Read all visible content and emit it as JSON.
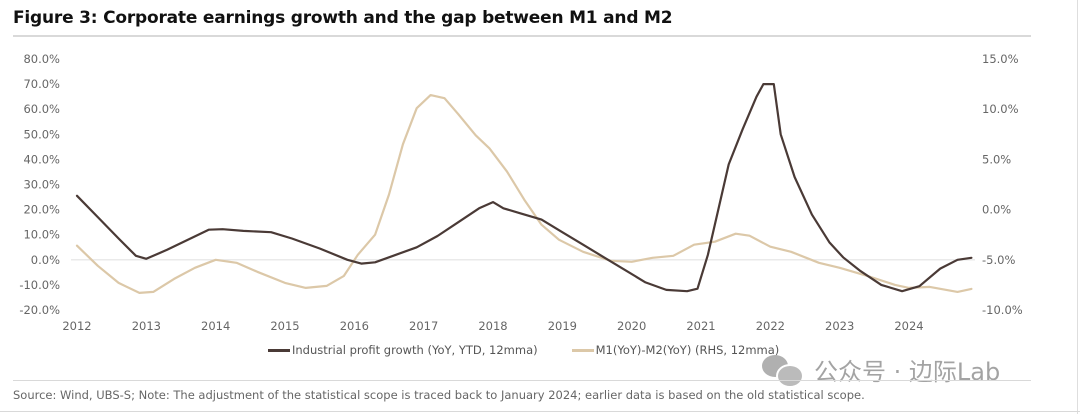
{
  "figure": {
    "title": "Figure 3: Corporate earnings growth and the gap between M1 and M2",
    "source": "Source: Wind, UBS-S; Note: The adjustment of the statistical scope is traced back to January 2024; earlier data is based on the old statistical scope.",
    "watermark": "公众号 · 边际Lab"
  },
  "colors": {
    "profit": "#4a3a36",
    "m1m2": "#dcc8a8",
    "zero_line": "#e3e3e3",
    "tick_text": "#666666"
  },
  "chart_data": {
    "type": "line",
    "title": "Figure 3: Corporate earnings growth and the gap between M1 and M2",
    "xlabel": "",
    "ylabel": "",
    "xlim": [
      2012,
      2025
    ],
    "ylim_left": [
      -20,
      80
    ],
    "ylim_right": [
      -10,
      15
    ],
    "grid": false,
    "legend_position": "bottom",
    "x_ticks": [
      "2012",
      "2013",
      "2014",
      "2015",
      "2016",
      "2017",
      "2018",
      "2019",
      "2020",
      "2021",
      "2022",
      "2023",
      "2024"
    ],
    "y_ticks_left": [
      "80.0%",
      "70.0%",
      "60.0%",
      "50.0%",
      "40.0%",
      "30.0%",
      "20.0%",
      "10.0%",
      "0.0%",
      "-10.0%",
      "-20.0%"
    ],
    "y_ticks_right": [
      "15.0%",
      "10.0%",
      "5.0%",
      "0.0%",
      "-5.0%",
      "-10.0%"
    ],
    "series": [
      {
        "name": "Industrial profit growth (YoY, YTD, 12mma)",
        "axis": "left",
        "x": [
          2012.0,
          2012.3,
          2012.6,
          2012.85,
          2013.0,
          2013.3,
          2013.6,
          2013.9,
          2014.1,
          2014.4,
          2014.8,
          2015.1,
          2015.5,
          2015.9,
          2016.1,
          2016.3,
          2016.6,
          2016.9,
          2017.2,
          2017.5,
          2017.8,
          2018.0,
          2018.15,
          2018.4,
          2018.7,
          2019.0,
          2019.3,
          2019.6,
          2019.9,
          2020.2,
          2020.5,
          2020.8,
          2020.95,
          2021.1,
          2021.25,
          2021.4,
          2021.6,
          2021.8,
          2021.9,
          2022.05,
          2022.15,
          2022.35,
          2022.6,
          2022.85,
          2023.05,
          2023.3,
          2023.6,
          2023.9,
          2024.15,
          2024.45,
          2024.7,
          2024.9
        ],
        "values": [
          25.5,
          17,
          8.5,
          1.6,
          0.4,
          4,
          8,
          12,
          12.2,
          11.5,
          11,
          8.5,
          4.5,
          0,
          -1.5,
          -1,
          2,
          5,
          9.5,
          15,
          20.5,
          23,
          20.5,
          18.5,
          16,
          11,
          6,
          1,
          -4,
          -9,
          -12,
          -12.5,
          -11.5,
          2,
          20,
          38,
          52,
          65,
          70,
          70,
          50,
          33,
          18,
          7,
          1,
          -4.5,
          -10,
          -12.5,
          -10.5,
          -3.5,
          0,
          0.8
        ]
      },
      {
        "name": "M1(YoY)-M2(YoY) (RHS, 12mma)",
        "axis": "right",
        "x": [
          2012.0,
          2012.3,
          2012.6,
          2012.9,
          2013.1,
          2013.4,
          2013.7,
          2014.0,
          2014.3,
          2014.6,
          2015.0,
          2015.3,
          2015.6,
          2015.85,
          2016.05,
          2016.3,
          2016.5,
          2016.7,
          2016.9,
          2017.1,
          2017.3,
          2017.5,
          2017.75,
          2017.95,
          2018.2,
          2018.45,
          2018.7,
          2018.95,
          2019.3,
          2019.7,
          2020.0,
          2020.3,
          2020.6,
          2020.9,
          2021.2,
          2021.5,
          2021.7,
          2022.0,
          2022.3,
          2022.7,
          2023.0,
          2023.4,
          2023.8,
          2024.0,
          2024.3,
          2024.7,
          2024.9
        ],
        "values": [
          -3.6,
          -5.6,
          -7.3,
          -8.3,
          -8.2,
          -6.9,
          -5.8,
          -5.0,
          -5.3,
          -6.2,
          -7.3,
          -7.8,
          -7.6,
          -6.6,
          -4.5,
          -2.5,
          1.5,
          6.5,
          10.1,
          11.4,
          11.1,
          9.5,
          7.4,
          6.1,
          3.8,
          1.0,
          -1.5,
          -3.0,
          -4.2,
          -5.1,
          -5.2,
          -4.8,
          -4.6,
          -3.5,
          -3.2,
          -2.4,
          -2.6,
          -3.7,
          -4.2,
          -5.3,
          -5.8,
          -6.6,
          -7.5,
          -7.8,
          -7.7,
          -8.2,
          -7.9
        ]
      }
    ]
  }
}
